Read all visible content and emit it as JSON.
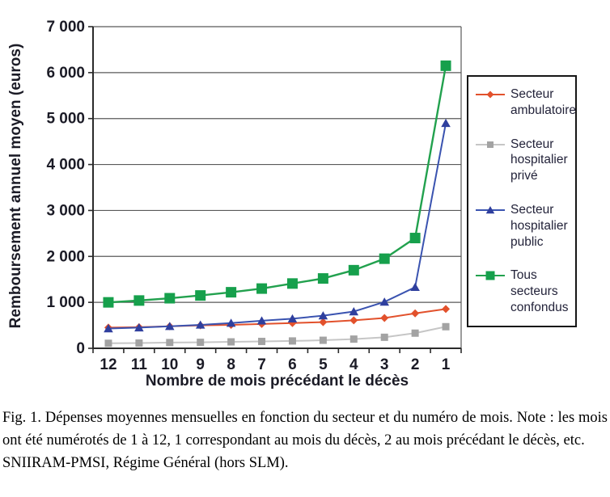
{
  "chart_data": {
    "type": "line",
    "x": [
      12,
      11,
      10,
      9,
      8,
      7,
      6,
      5,
      4,
      3,
      2,
      1
    ],
    "xlabel": "Nombre de mois précédant le décès",
    "ylabel": "Remboursement annuel moyen (euros)",
    "ylim": [
      0,
      7000
    ],
    "ytick_step": 1000,
    "ytick_labels": [
      "0",
      "1 000",
      "2 000",
      "3 000",
      "4 000",
      "5 000",
      "6 000",
      "7 000"
    ],
    "grid": true,
    "legend_position": "right",
    "colors": {
      "grid": "#595959",
      "axis": "#2b2b2b",
      "text": "#1b1b26"
    },
    "series": [
      {
        "name": "Secteur ambulatoire",
        "marker": "diamond",
        "line_color": "#e2512c",
        "marker_color": "#e2512c",
        "line_width": 2,
        "marker_size": 5,
        "legend_marker_size": 4.5,
        "values": [
          450,
          460,
          480,
          500,
          510,
          530,
          550,
          570,
          610,
          660,
          760,
          855
        ]
      },
      {
        "name": "Secteur hospitalier privé",
        "marker": "square",
        "line_color": "#c6c6c6",
        "marker_color": "#a3a3a3",
        "line_width": 2,
        "marker_size": 4.5,
        "legend_marker_size": 4,
        "values": [
          110,
          115,
          125,
          130,
          140,
          150,
          160,
          175,
          200,
          240,
          330,
          470
        ]
      },
      {
        "name": "Secteur hospitalier public",
        "marker": "triangle",
        "line_color": "#3a53b0",
        "marker_color": "#2f3f9e",
        "line_width": 2,
        "marker_size": 5.5,
        "legend_marker_size": 5,
        "values": [
          430,
          450,
          480,
          510,
          550,
          600,
          645,
          710,
          800,
          1010,
          1330,
          4900
        ]
      },
      {
        "name": "Tous secteurs confondus",
        "marker": "square",
        "line_color": "#22a14e",
        "marker_color": "#16a04c",
        "line_width": 2.4,
        "marker_size": 6.5,
        "legend_marker_size": 5.5,
        "values": [
          1000,
          1040,
          1090,
          1150,
          1220,
          1300,
          1410,
          1520,
          1700,
          1950,
          2400,
          6150
        ]
      }
    ]
  },
  "caption": {
    "main": "Fig. 1.  Dépenses moyennes mensuelles en fonction du secteur et du numéro de mois. Note : les mois ont été numérotés de 1 à 12, 1 correspondant au mois du décès, 2 au mois précédant le décès, etc.",
    "source": "SNIIRAM-PMSI, Régime Général (hors SLM)."
  }
}
